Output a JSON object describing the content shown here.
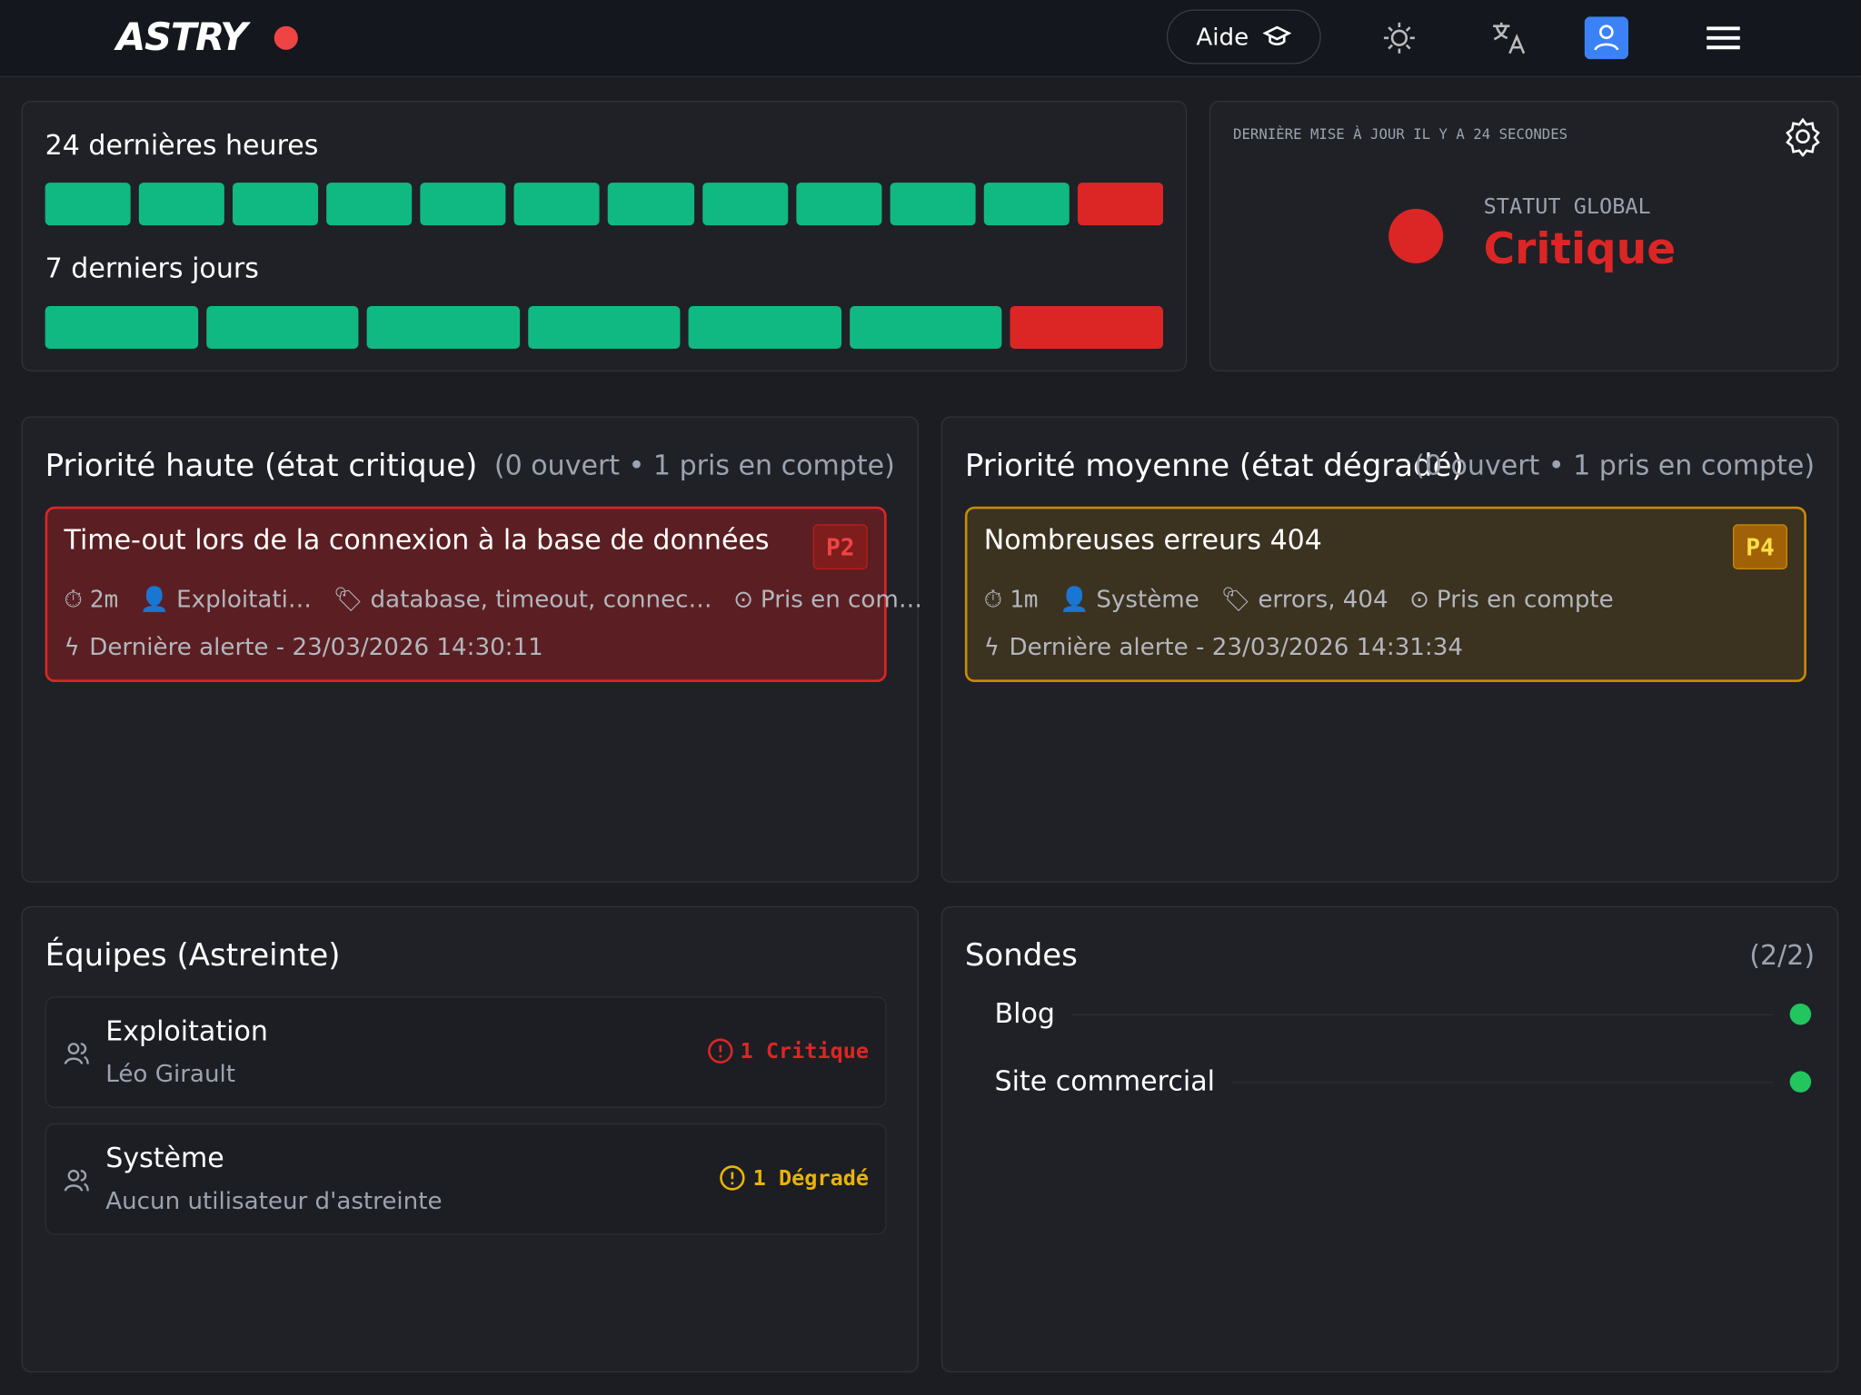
{
  "header": {
    "logo": "ASTRY",
    "help": "Aide"
  },
  "uptime": {
    "hours_title": "24 dernières heures",
    "hours": [
      "#10b981",
      "#10b981",
      "#10b981",
      "#10b981",
      "#10b981",
      "#10b981",
      "#10b981",
      "#10b981",
      "#10b981",
      "#10b981",
      "#10b981",
      "#dc2626"
    ],
    "days_title": "7 derniers jours",
    "days": [
      "#10b981",
      "#10b981",
      "#10b981",
      "#10b981",
      "#10b981",
      "#10b981",
      "#dc2626"
    ]
  },
  "status": {
    "updated": "DERNIÈRE MISE À JOUR IL Y A 24 SECONDES",
    "label": "STATUT GLOBAL",
    "value": "Critique"
  },
  "incidents": [
    {
      "title": "Priorité haute (état critique)",
      "counts": "(0 ouvert • 1 pris en compte)",
      "item": {
        "name": "Time-out lors de la connexion à la base de données",
        "priority": "P2",
        "duration": "2m",
        "team": "Exploitati…",
        "tags": "database, timeout, connec…",
        "state": "Pris en com…",
        "last_alert": "Dernière alerte - 23/03/2026 14:30:11"
      }
    },
    {
      "title": "Priorité moyenne (état dégradé)",
      "counts": "(0 ouvert • 1 pris en compte)",
      "item": {
        "name": "Nombreuses erreurs 404",
        "priority": "P4",
        "duration": "1m",
        "team": "Système",
        "tags": "errors, 404",
        "state": "Pris en compte",
        "last_alert": "Dernière alerte - 23/03/2026 14:31:34"
      }
    }
  ],
  "teams": {
    "title": "Équipes (Astreinte)",
    "items": [
      {
        "name": "Exploitation",
        "user": "Léo Girault",
        "status": "1 Critique"
      },
      {
        "name": "Système",
        "user": "Aucun utilisateur d'astreinte",
        "status": "1 Dégradé"
      }
    ]
  },
  "probes": {
    "title": "Sondes",
    "count": "(2/2)",
    "items": [
      "Blog",
      "Site commercial"
    ]
  }
}
